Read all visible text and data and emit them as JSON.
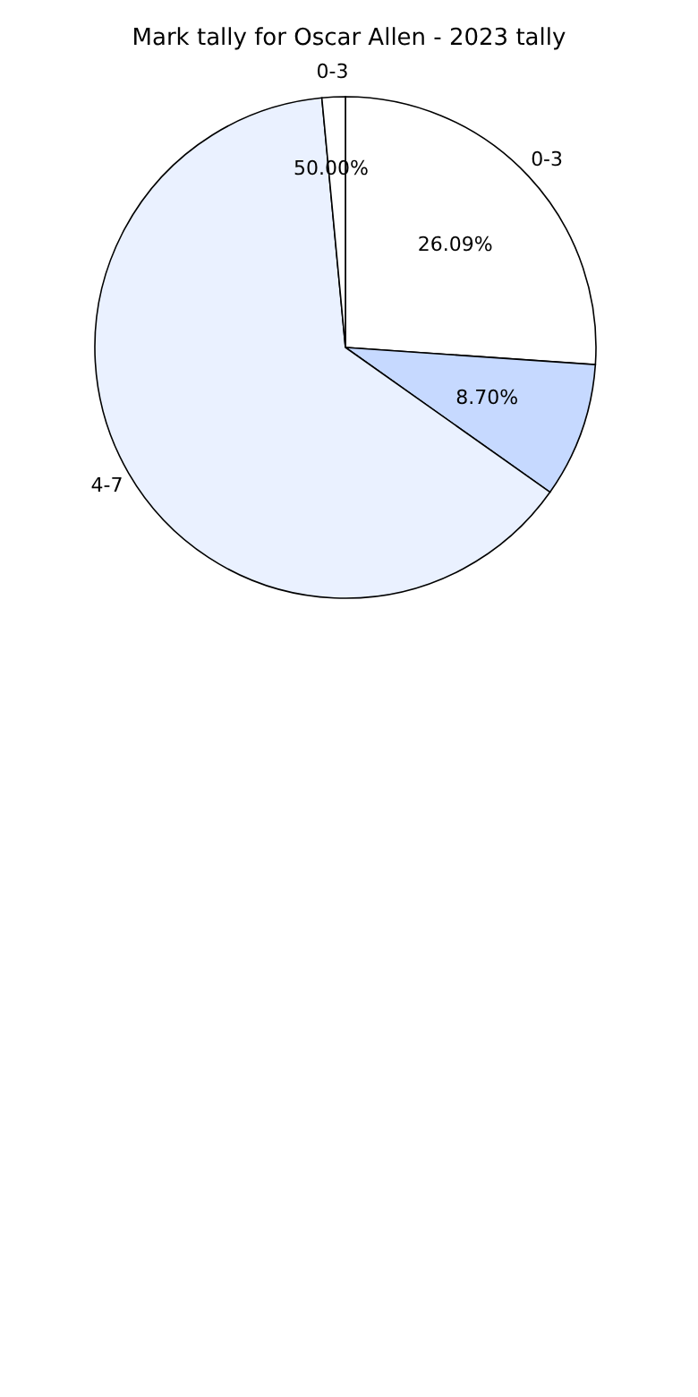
{
  "chart_data": {
    "type": "pie",
    "title": "Mark tally for Oscar Allen - 2023 tally",
    "categories": [
      "0-3",
      null,
      "4-7",
      "0-3"
    ],
    "values": [
      26.09,
      8.7,
      63.71,
      1.5
    ],
    "colors": [
      "#ffffff",
      "#c6d9ff",
      "#eaf1ff",
      "#ffffff"
    ],
    "value_labels": [
      "26.09%",
      "8.70%",
      null,
      null
    ],
    "annotations": [
      "50.00%"
    ]
  }
}
